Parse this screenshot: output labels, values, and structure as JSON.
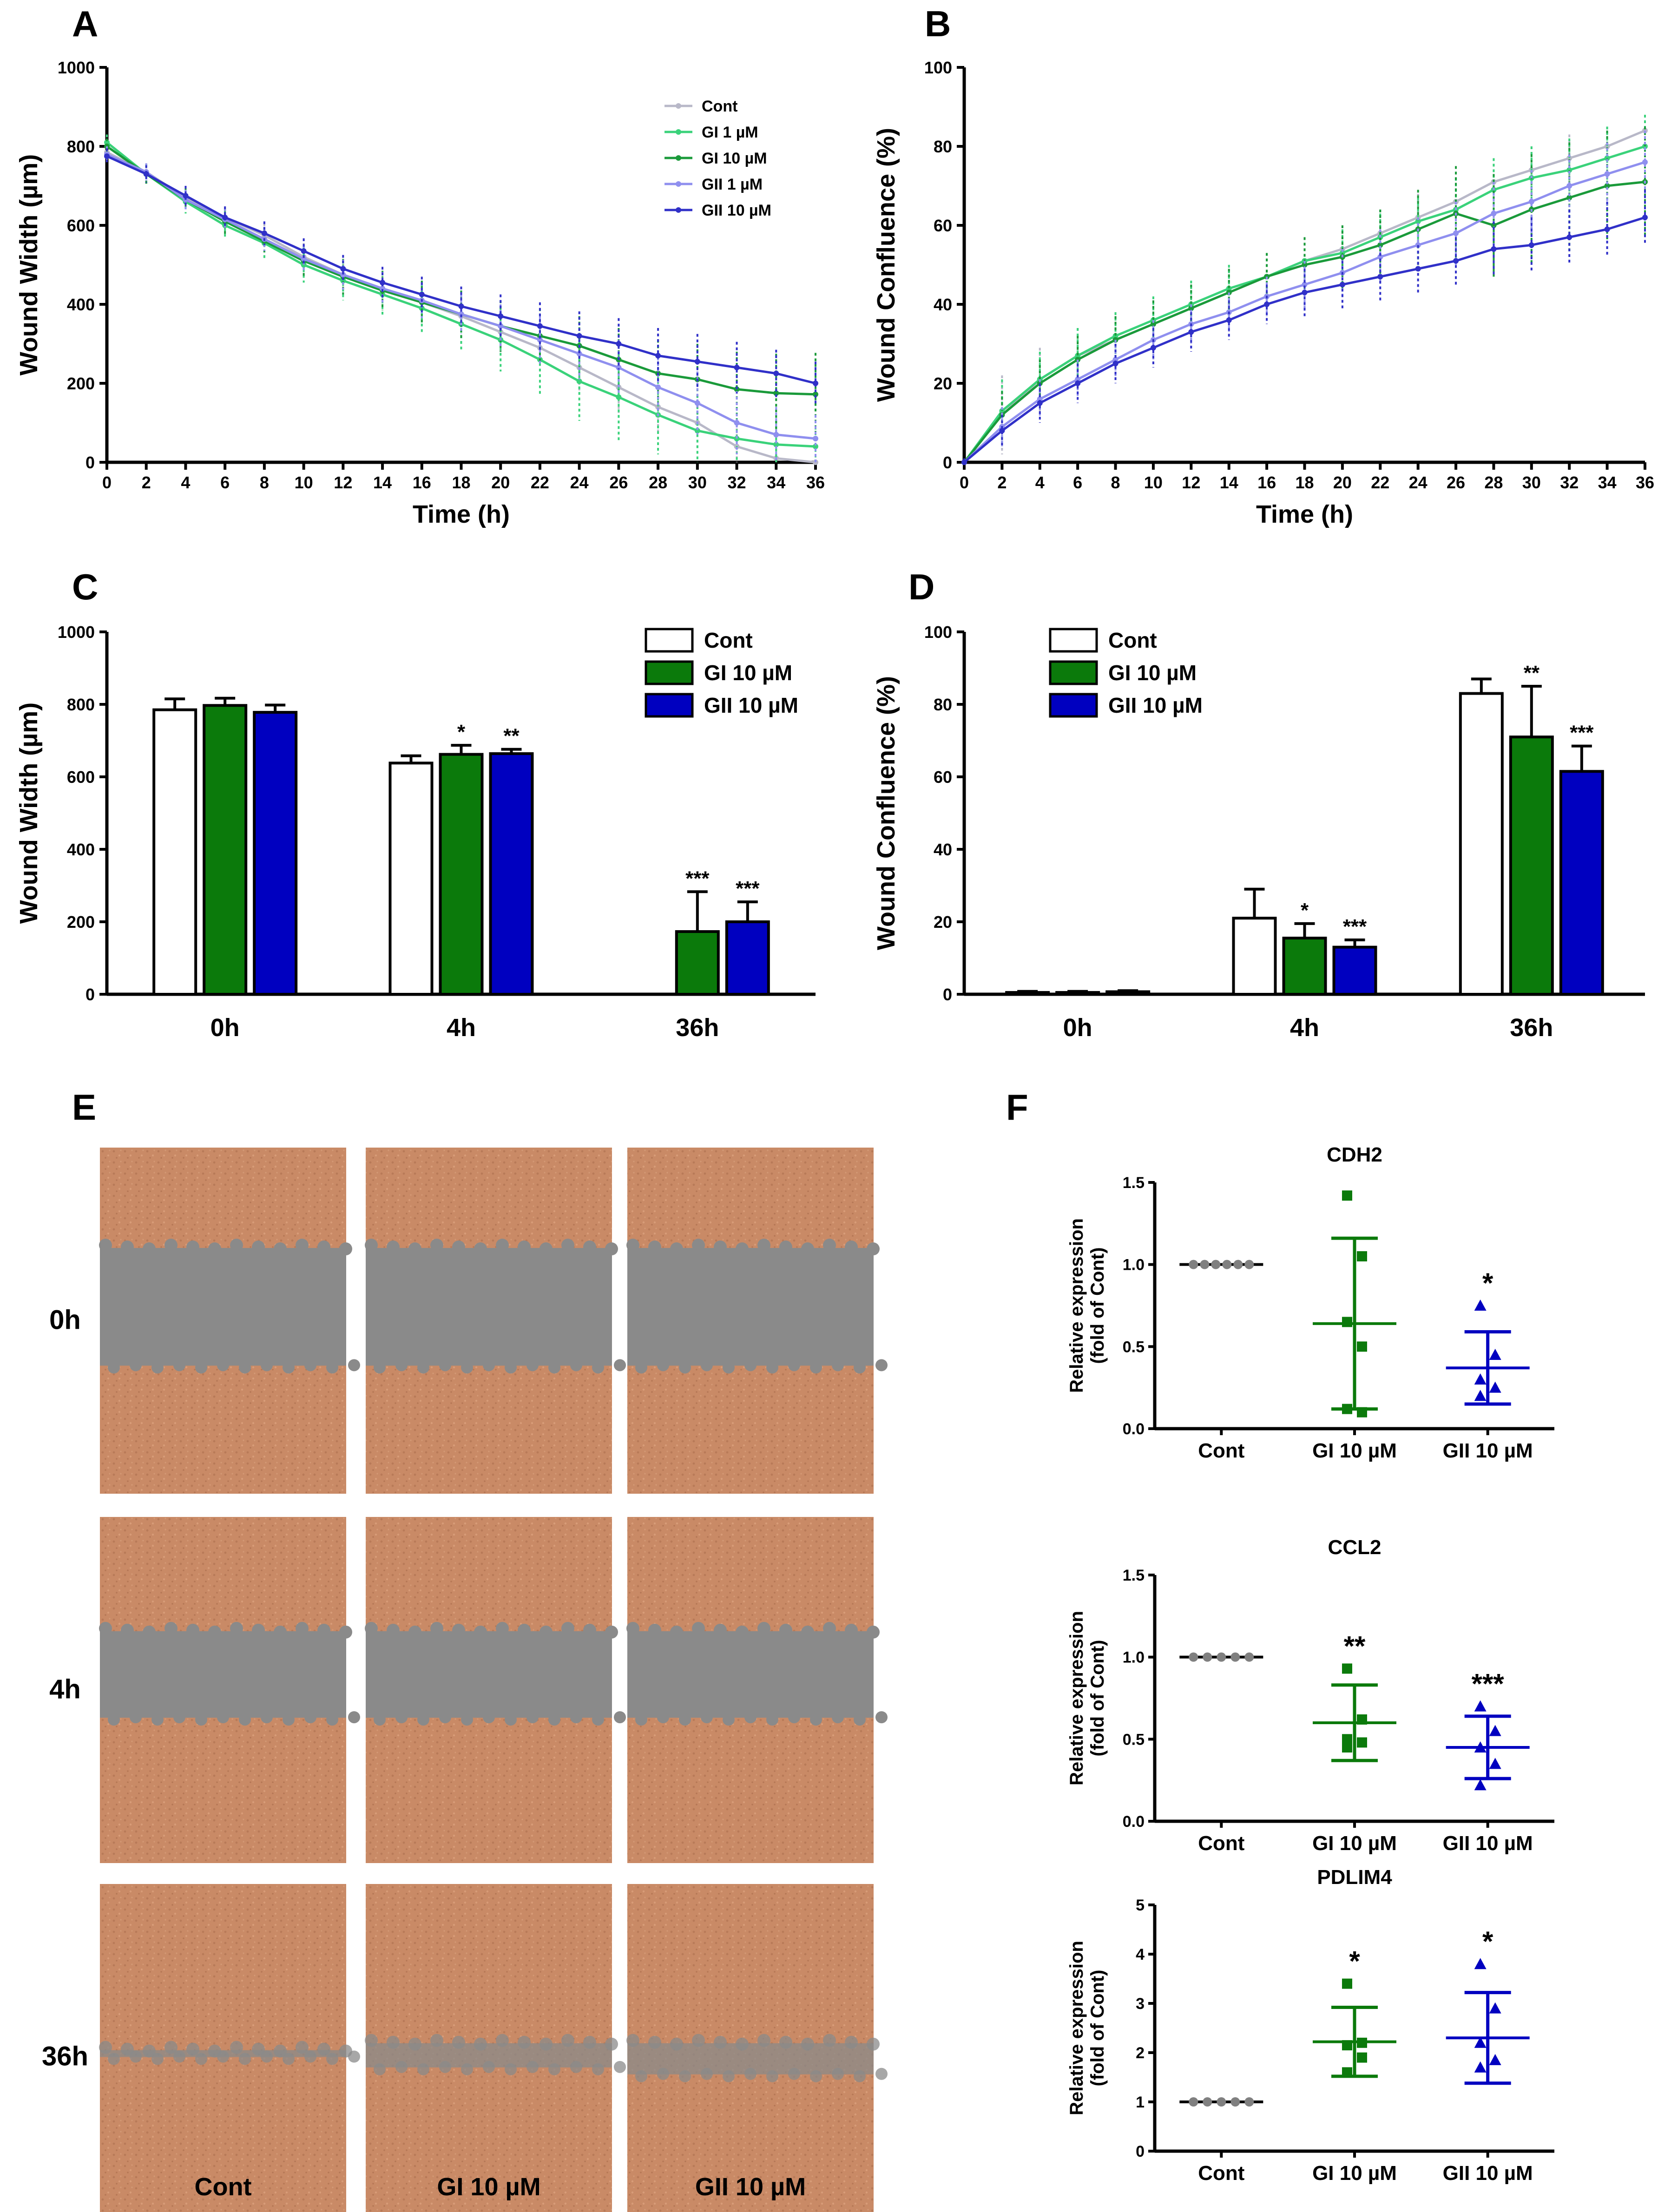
{
  "panels": {
    "A": "A",
    "B": "B",
    "C": "C",
    "D": "D",
    "E": "E",
    "F": "F"
  },
  "colors": {
    "cont": "#b8b8c8",
    "gi1": "#3ad27a",
    "gi10": "#1a9a3a",
    "gii1": "#8f8fef",
    "gii10": "#3030c8",
    "bar_green": "#0b7a0b",
    "bar_blue": "#0000c0",
    "dot_grey": "#808080",
    "cell": "#c98a66",
    "wound": "#8a8a8a"
  },
  "chart_data": [
    {
      "id": "A",
      "type": "line",
      "xlabel": "Time (h)",
      "ylabel": "Wound Width (µm)",
      "xlim": [
        0,
        36
      ],
      "ylim": [
        0,
        1000
      ],
      "xticks": [
        "0",
        "2",
        "4",
        "6",
        "8",
        "10",
        "12",
        "14",
        "16",
        "18",
        "20",
        "22",
        "24",
        "26",
        "28",
        "30",
        "32",
        "34",
        "36"
      ],
      "yticks": [
        "0",
        "200",
        "400",
        "600",
        "800",
        "1000"
      ],
      "x": [
        0,
        2,
        4,
        6,
        8,
        10,
        12,
        14,
        16,
        18,
        20,
        22,
        24,
        26,
        28,
        30,
        32,
        34,
        36
      ],
      "legend": [
        "Cont",
        "GI 1 µM",
        "GI 10 µM",
        "GII 1 µM",
        "GII 10 µM"
      ],
      "series": [
        {
          "name": "Cont",
          "color": "cont",
          "values": [
            785,
            735,
            670,
            620,
            575,
            520,
            475,
            440,
            405,
            370,
            330,
            290,
            240,
            190,
            140,
            100,
            40,
            10,
            0
          ],
          "err": [
            20,
            22,
            25,
            28,
            30,
            35,
            40,
            42,
            45,
            50,
            55,
            60,
            62,
            65,
            70,
            70,
            60,
            40,
            20
          ]
        },
        {
          "name": "GI 1 µM",
          "color": "gi1",
          "values": [
            810,
            730,
            660,
            600,
            555,
            500,
            460,
            425,
            390,
            350,
            310,
            260,
            205,
            165,
            120,
            80,
            60,
            45,
            40
          ],
          "err": [
            20,
            25,
            30,
            35,
            40,
            45,
            50,
            55,
            60,
            70,
            80,
            90,
            100,
            110,
            100,
            90,
            80,
            60,
            50
          ]
        },
        {
          "name": "GI 10 µM",
          "color": "gi10",
          "values": [
            800,
            730,
            665,
            610,
            560,
            510,
            470,
            435,
            405,
            375,
            345,
            320,
            295,
            260,
            225,
            210,
            185,
            175,
            172
          ],
          "err": [
            20,
            25,
            28,
            32,
            35,
            40,
            45,
            50,
            55,
            60,
            65,
            70,
            75,
            80,
            85,
            90,
            95,
            100,
            105
          ]
        },
        {
          "name": "GII 1 µM",
          "color": "gii1",
          "values": [
            780,
            735,
            665,
            615,
            565,
            515,
            475,
            440,
            410,
            375,
            345,
            310,
            275,
            240,
            190,
            150,
            100,
            70,
            60
          ],
          "err": [
            20,
            22,
            25,
            28,
            30,
            35,
            38,
            42,
            45,
            50,
            55,
            60,
            65,
            70,
            75,
            80,
            80,
            70,
            60
          ]
        },
        {
          "name": "GII 10 µM",
          "color": "gii10",
          "values": [
            775,
            730,
            675,
            620,
            580,
            535,
            490,
            455,
            425,
            395,
            370,
            345,
            320,
            300,
            270,
            255,
            240,
            225,
            200
          ],
          "err": [
            20,
            22,
            25,
            28,
            30,
            32,
            35,
            40,
            45,
            50,
            55,
            60,
            62,
            65,
            70,
            70,
            65,
            60,
            55
          ]
        }
      ]
    },
    {
      "id": "B",
      "type": "line",
      "xlabel": "Time (h)",
      "ylabel": "Wound Confluence (%)",
      "xlim": [
        0,
        36
      ],
      "ylim": [
        0,
        100
      ],
      "xticks": [
        "0",
        "2",
        "4",
        "6",
        "8",
        "10",
        "12",
        "14",
        "16",
        "18",
        "20",
        "22",
        "24",
        "26",
        "28",
        "30",
        "32",
        "34",
        "36"
      ],
      "yticks": [
        "0",
        "20",
        "40",
        "60",
        "80",
        "100"
      ],
      "x": [
        0,
        2,
        4,
        6,
        8,
        10,
        12,
        14,
        16,
        18,
        20,
        22,
        24,
        26,
        28,
        30,
        32,
        34,
        36
      ],
      "series": [
        {
          "name": "Cont",
          "color": "cont",
          "values": [
            0,
            12,
            21,
            27,
            31,
            35,
            39,
            43,
            47,
            51,
            54,
            58,
            62,
            66,
            71,
            74,
            77,
            80,
            84
          ],
          "err": [
            1,
            10,
            8,
            7,
            6,
            6,
            6,
            6,
            6,
            6,
            6,
            6,
            6,
            6,
            6,
            6,
            6,
            5,
            4
          ]
        },
        {
          "name": "GI 1 µM",
          "color": "gi1",
          "values": [
            0,
            13,
            21,
            27,
            32,
            36,
            40,
            44,
            47,
            51,
            53,
            57,
            61,
            64,
            69,
            72,
            74,
            77,
            80
          ],
          "err": [
            1,
            8,
            7,
            7,
            6,
            6,
            6,
            6,
            6,
            6,
            6,
            6,
            6,
            8,
            8,
            8,
            8,
            8,
            8
          ]
        },
        {
          "name": "GI 10 µM",
          "color": "gi10",
          "values": [
            0,
            12,
            20,
            26,
            31,
            35,
            39,
            43,
            47,
            50,
            52,
            55,
            59,
            63,
            60,
            64,
            67,
            70,
            71
          ],
          "err": [
            1,
            6,
            6,
            6,
            6,
            6,
            6,
            6,
            6,
            7,
            8,
            9,
            10,
            12,
            13,
            14,
            14,
            14,
            14
          ]
        },
        {
          "name": "GII 1 µM",
          "color": "gii1",
          "values": [
            0,
            9,
            16,
            21,
            26,
            31,
            35,
            38,
            42,
            45,
            48,
            52,
            55,
            58,
            63,
            66,
            70,
            73,
            76
          ],
          "err": [
            1,
            5,
            5,
            5,
            5,
            5,
            5,
            5,
            5,
            6,
            6,
            7,
            7,
            8,
            8,
            8,
            8,
            8,
            8
          ]
        },
        {
          "name": "GII 10 µM",
          "color": "gii10",
          "values": [
            0,
            8,
            15,
            20,
            25,
            29,
            33,
            36,
            40,
            43,
            45,
            47,
            49,
            51,
            54,
            55,
            57,
            59,
            62
          ],
          "err": [
            1,
            4,
            5,
            5,
            5,
            5,
            5,
            5,
            5,
            6,
            6,
            6,
            6,
            6,
            7,
            7,
            7,
            7,
            7
          ]
        }
      ]
    },
    {
      "id": "C",
      "type": "bar",
      "ylabel": "Wound Width (µm)",
      "ylim": [
        0,
        1000
      ],
      "yticks": [
        "0",
        "200",
        "400",
        "600",
        "800",
        "1000"
      ],
      "categories": [
        "0h",
        "4h",
        "36h"
      ],
      "legend": [
        "Cont",
        "GI 10 µM",
        "GII 10 µM"
      ],
      "series": [
        {
          "name": "Cont",
          "fill": "#ffffff",
          "values": [
            785,
            638,
            0
          ],
          "err": [
            30,
            20,
            0
          ],
          "sig": [
            "",
            "",
            ""
          ]
        },
        {
          "name": "GI 10 µM",
          "fill": "bar_green",
          "values": [
            797,
            662,
            173
          ],
          "err": [
            20,
            25,
            110
          ],
          "sig": [
            "",
            "*",
            "***"
          ]
        },
        {
          "name": "GII 10 µM",
          "fill": "bar_blue",
          "values": [
            778,
            664,
            200
          ],
          "err": [
            20,
            12,
            55
          ],
          "sig": [
            "",
            "**",
            "***"
          ]
        }
      ]
    },
    {
      "id": "D",
      "type": "bar",
      "ylabel": "Wound Confluence (%)",
      "ylim": [
        0,
        100
      ],
      "yticks": [
        "0",
        "20",
        "40",
        "60",
        "80",
        "100"
      ],
      "categories": [
        "0h",
        "4h",
        "36h"
      ],
      "legend": [
        "Cont",
        "GI 10 µM",
        "GII 10 µM"
      ],
      "series": [
        {
          "name": "Cont",
          "fill": "#ffffff",
          "values": [
            0.5,
            21,
            83
          ],
          "err": [
            0.3,
            8,
            4
          ],
          "sig": [
            "",
            "",
            ""
          ]
        },
        {
          "name": "GI 10 µM",
          "fill": "bar_green",
          "values": [
            0.5,
            15.5,
            71
          ],
          "err": [
            0.3,
            4,
            14
          ],
          "sig": [
            "",
            "*",
            "**"
          ]
        },
        {
          "name": "GII 10 µM",
          "fill": "bar_blue",
          "values": [
            0.7,
            13,
            61.5
          ],
          "err": [
            0.3,
            2,
            7
          ],
          "sig": [
            "",
            "***",
            "***"
          ]
        }
      ]
    },
    {
      "id": "F1",
      "type": "scatter",
      "title": "CDH2",
      "ylabel": "Relative expression (fold of Cont)",
      "ylabel_line1": "Relative expression",
      "ylabel_line2": "(fold of Cont)",
      "ylim": [
        0,
        1.5
      ],
      "yticks": [
        "0.0",
        "0.5",
        "1.0",
        "1.5"
      ],
      "categories": [
        "Cont",
        "GI 10 µM",
        "GII 10 µM"
      ],
      "groups": [
        {
          "name": "Cont",
          "marker": "circle",
          "color": "dot_grey",
          "points": [
            1,
            1,
            1,
            1,
            1,
            1
          ],
          "mean": 1.0,
          "sd": 0,
          "sig": ""
        },
        {
          "name": "GI 10 µM",
          "marker": "square",
          "color": "bar_green",
          "points": [
            1.42,
            1.05,
            0.65,
            0.5,
            0.12,
            0.1
          ],
          "mean": 0.64,
          "sd": 0.52,
          "sig": ""
        },
        {
          "name": "GII 10 µM",
          "marker": "triangle",
          "color": "bar_blue",
          "points": [
            0.75,
            0.45,
            0.3,
            0.25,
            0.2
          ],
          "mean": 0.37,
          "sd": 0.22,
          "sig": "*"
        }
      ]
    },
    {
      "id": "F2",
      "type": "scatter",
      "title": "CCL2",
      "ylabel": "Relative expression (fold of Cont)",
      "ylabel_line1": "Relative expression",
      "ylabel_line2": "(fold of Cont)",
      "ylim": [
        0,
        1.5
      ],
      "yticks": [
        "0.0",
        "0.5",
        "1.0",
        "1.5"
      ],
      "categories": [
        "Cont",
        "GI 10 µM",
        "GII 10 µM"
      ],
      "groups": [
        {
          "name": "Cont",
          "marker": "circle",
          "color": "dot_grey",
          "points": [
            1,
            1,
            1,
            1,
            1
          ],
          "mean": 1.0,
          "sd": 0,
          "sig": ""
        },
        {
          "name": "GI 10 µM",
          "marker": "square",
          "color": "bar_green",
          "points": [
            0.93,
            0.62,
            0.5,
            0.48,
            0.45
          ],
          "mean": 0.6,
          "sd": 0.23,
          "sig": "**"
        },
        {
          "name": "GII 10 µM",
          "marker": "triangle",
          "color": "bar_blue",
          "points": [
            0.7,
            0.55,
            0.45,
            0.35,
            0.22
          ],
          "mean": 0.45,
          "sd": 0.19,
          "sig": "***"
        }
      ]
    },
    {
      "id": "F3",
      "type": "scatter",
      "title": "PDLIM4",
      "ylabel": "Relative expression (fold of Cont)",
      "ylabel_line1": "Relative expression",
      "ylabel_line2": "(fold of Cont)",
      "ylim": [
        0,
        5
      ],
      "yticks": [
        "0",
        "1",
        "2",
        "3",
        "4",
        "5"
      ],
      "categories": [
        "Cont",
        "GI 10 µM",
        "GII 10 µM"
      ],
      "groups": [
        {
          "name": "Cont",
          "marker": "circle",
          "color": "dot_grey",
          "points": [
            1,
            1,
            1,
            1,
            1
          ],
          "mean": 1.0,
          "sd": 0,
          "sig": ""
        },
        {
          "name": "GI 10 µM",
          "marker": "square",
          "color": "bar_green",
          "points": [
            3.4,
            2.2,
            2.15,
            1.9,
            1.6
          ],
          "mean": 2.22,
          "sd": 0.7,
          "sig": "*"
        },
        {
          "name": "GII 10 µM",
          "marker": "triangle",
          "color": "bar_blue",
          "points": [
            3.8,
            2.9,
            2.2,
            1.85,
            1.7
          ],
          "mean": 2.3,
          "sd": 0.92,
          "sig": "*"
        }
      ]
    }
  ],
  "panel_E": {
    "rows": [
      "0h",
      "4h",
      "36h"
    ],
    "cols": [
      "Cont",
      "GI 10 µM",
      "GII 10 µM"
    ]
  }
}
